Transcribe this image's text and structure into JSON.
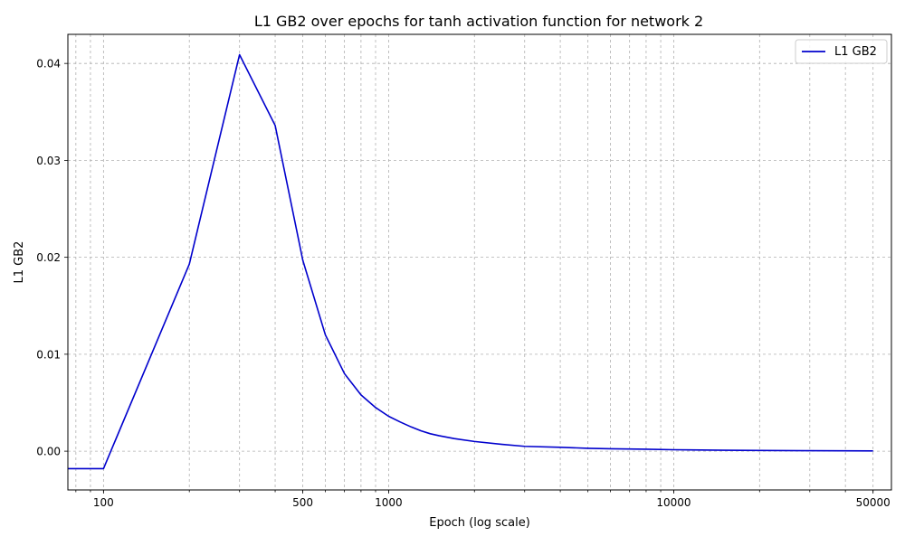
{
  "chart_data": {
    "type": "line",
    "title": "L1 GB2 over epochs for tanh activation function for network 2",
    "xlabel": "Epoch (log scale)",
    "ylabel": "L1 GB2",
    "xscale": "log",
    "xlim": [
      75,
      58000
    ],
    "ylim": [
      -0.004,
      0.043
    ],
    "x_tick_labels": [
      {
        "value": 100,
        "label": "100"
      },
      {
        "value": 500,
        "label": "500"
      },
      {
        "value": 1000,
        "label": "1000"
      },
      {
        "value": 10000,
        "label": "10000"
      },
      {
        "value": 50000,
        "label": "50000"
      }
    ],
    "y_tick_labels": [
      {
        "value": 0.0,
        "label": "0.00"
      },
      {
        "value": 0.01,
        "label": "0.01"
      },
      {
        "value": 0.02,
        "label": "0.02"
      },
      {
        "value": 0.03,
        "label": "0.03"
      },
      {
        "value": 0.04,
        "label": "0.04"
      }
    ],
    "grid": true,
    "grid_style": "dashed",
    "legend_position": "top-right",
    "series": [
      {
        "name": "L1 GB2",
        "color": "#0000cd",
        "x": [
          75,
          100,
          200,
          300,
          400,
          500,
          600,
          700,
          800,
          900,
          1000,
          1100,
          1200,
          1300,
          1400,
          1500,
          1700,
          2000,
          2500,
          3000,
          4000,
          5000,
          6000,
          8000,
          10000,
          15000,
          20000,
          30000,
          50000
        ],
        "y": [
          -0.0018,
          -0.0018,
          0.0193,
          0.0409,
          0.0336,
          0.0197,
          0.012,
          0.008,
          0.0058,
          0.0045,
          0.0036,
          0.003,
          0.0025,
          0.0021,
          0.0018,
          0.0016,
          0.0013,
          0.001,
          0.0007,
          0.0005,
          0.0004,
          0.0003,
          0.00025,
          0.0002,
          0.00015,
          0.0001,
          7e-05,
          5e-05,
          3e-05
        ]
      }
    ]
  }
}
